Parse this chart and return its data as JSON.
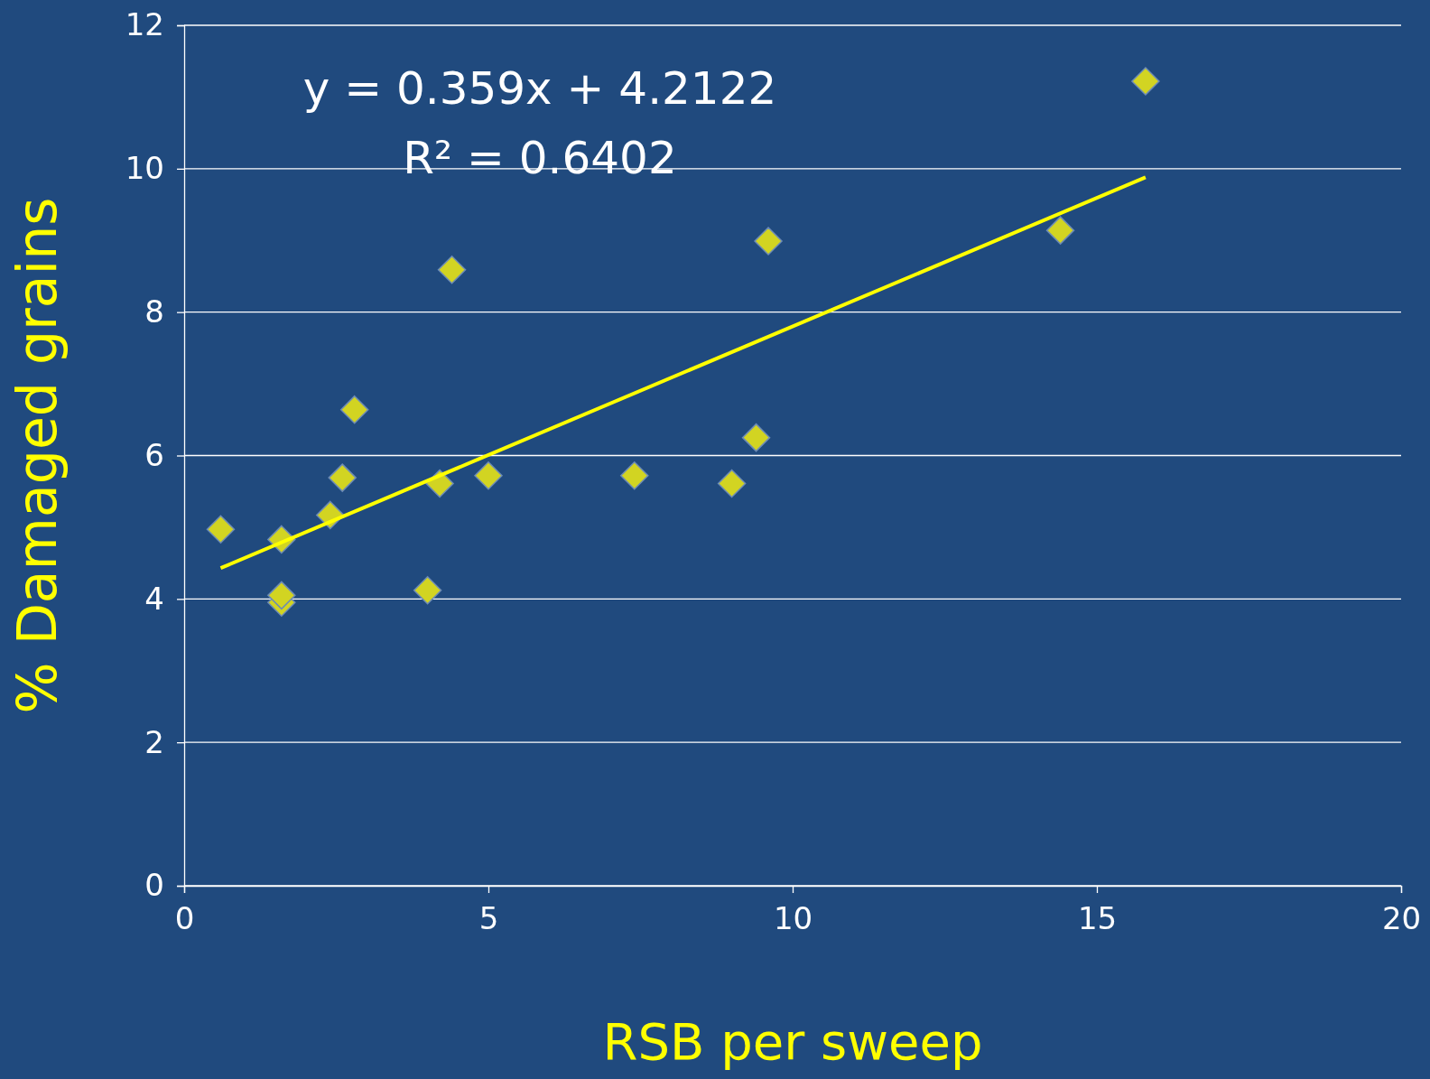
{
  "chart_data": {
    "type": "scatter",
    "xlabel": "RSB per sweep",
    "ylabel": "% Damaged grains",
    "xlim": [
      0,
      20
    ],
    "xticks": [
      0,
      5,
      10,
      15,
      20
    ],
    "ylim": [
      0,
      12
    ],
    "yticks": [
      0,
      2,
      4,
      6,
      8,
      10,
      12
    ],
    "grid": "y",
    "marker": "diamond",
    "annotations": [
      "y = 0.359x + 4.2122",
      "R² = 0.6402"
    ],
    "series": [
      {
        "color": "#d2d422",
        "x": [
          0.6,
          1.6,
          1.6,
          1.6,
          2.4,
          2.6,
          2.8,
          4.0,
          4.2,
          4.4,
          5.0,
          7.4,
          9.0,
          9.4,
          9.6,
          14.4,
          15.8
        ],
        "values": [
          4.97,
          4.83,
          3.95,
          4.05,
          5.17,
          5.69,
          6.64,
          4.12,
          5.61,
          8.59,
          5.72,
          5.72,
          5.61,
          6.25,
          8.99,
          9.14,
          11.22
        ]
      },
      {
        "type": "line",
        "color": "#ffff00",
        "marker": "none",
        "x": [
          0.6,
          15.8
        ],
        "values": [
          4.43,
          9.88
        ]
      }
    ]
  }
}
